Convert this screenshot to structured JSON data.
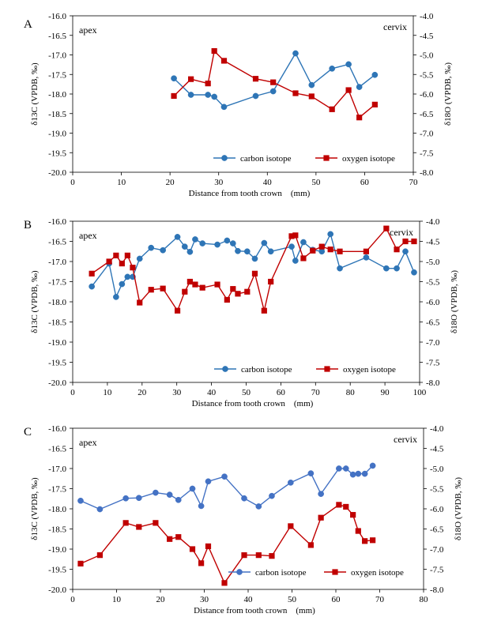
{
  "chart_data": [
    {
      "type": "line",
      "panel": "A",
      "apex_label": "apex",
      "cervix_label": "cervix",
      "xlabel": "Distance from tooth crown　(mm)",
      "ylabel_left": "δ13C (VPDB, ‰)",
      "ylabel_right": "δ18O (VPDB, ‰)",
      "xlim": [
        0,
        70
      ],
      "x_ticks": [
        "0",
        "10",
        "20",
        "30",
        "40",
        "50",
        "60",
        "70"
      ],
      "ylim_left": [
        -20.0,
        -16.0
      ],
      "y_left_ticks": [
        "-16.0",
        "-16.5",
        "-17.0",
        "-17.5",
        "-18.0",
        "-18.5",
        "-19.0",
        "-19.5",
        "-20.0"
      ],
      "ylim_right": [
        -8.0,
        -4.0
      ],
      "y_right_ticks": [
        "-4.0",
        "-4.5",
        "-5.0",
        "-5.5",
        "-6.0",
        "-6.5",
        "-7.0",
        "-7.5",
        "-8.0"
      ],
      "legend_position": "bottom-right",
      "series": [
        {
          "name": "carbon isotope",
          "axis": "left",
          "color": "#2e75b6",
          "marker": "circle",
          "x": [
            20.8,
            24.3,
            27.8,
            29.1,
            31.1,
            37.6,
            41.2,
            45.8,
            49.1,
            53.3,
            56.7,
            58.9,
            62.1
          ],
          "y": [
            -17.6,
            -18.02,
            -18.02,
            -18.07,
            -18.33,
            -18.05,
            -17.93,
            -16.96,
            -17.77,
            -17.35,
            -17.24,
            -17.82,
            -17.51
          ]
        },
        {
          "name": "oxygen isotope",
          "axis": "right",
          "color": "#c00000",
          "marker": "square",
          "x": [
            20.8,
            24.3,
            27.8,
            29.1,
            31.1,
            37.6,
            41.2,
            45.8,
            49.1,
            53.3,
            56.7,
            58.9,
            62.1
          ],
          "y": [
            -6.05,
            -5.62,
            -5.73,
            -4.9,
            -5.15,
            -5.61,
            -5.7,
            -5.98,
            -6.06,
            -6.39,
            -5.9,
            -6.6,
            -6.27
          ]
        }
      ]
    },
    {
      "type": "line",
      "panel": "B",
      "apex_label": "apex",
      "cervix_label": "cervix",
      "xlabel": "Distance from tooth crown　(mm)",
      "ylabel_left": "δ13C (VPDB, ‰)",
      "ylabel_right": "δ18O (VPDB, ‰)",
      "xlim": [
        0,
        100
      ],
      "x_ticks": [
        "0",
        "10",
        "20",
        "30",
        "40",
        "50",
        "60",
        "70",
        "80",
        "90",
        "100"
      ],
      "ylim_left": [
        -20.0,
        -16.0
      ],
      "y_left_ticks": [
        "-16.0",
        "-16.5",
        "-17.0",
        "-17.5",
        "-18.0",
        "-18.5",
        "-19.0",
        "-19.5",
        "-20.0"
      ],
      "ylim_right": [
        -8.0,
        -4.0
      ],
      "y_right_ticks": [
        "-4.0",
        "-4.5",
        "-5.0",
        "-5.5",
        "-6.0",
        "-6.5",
        "-7.0",
        "-7.5",
        "-8.0"
      ],
      "legend_position": "bottom-right",
      "series": [
        {
          "name": "carbon isotope",
          "axis": "left",
          "color": "#2e75b6",
          "marker": "circle",
          "x": [
            5.5,
            10.5,
            12.5,
            14.2,
            15.8,
            17.3,
            19.3,
            22.6,
            26,
            30.2,
            32.3,
            33.8,
            35.3,
            37.4,
            41.7,
            44.5,
            46.2,
            47.6,
            50.3,
            52.5,
            55.2,
            57.1,
            63.1,
            64.2,
            66.5,
            69.2,
            71.8,
            74.3,
            77.0,
            84.6,
            90.4,
            93.4,
            95.9,
            98.4
          ],
          "y": [
            -17.62,
            -17.05,
            -17.88,
            -17.56,
            -17.38,
            -17.38,
            -16.93,
            -16.66,
            -16.72,
            -16.39,
            -16.63,
            -16.76,
            -16.45,
            -16.55,
            -16.58,
            -16.48,
            -16.55,
            -16.74,
            -16.75,
            -16.93,
            -16.54,
            -16.75,
            -16.63,
            -16.98,
            -16.52,
            -16.71,
            -16.75,
            -16.32,
            -17.17,
            -16.9,
            -17.17,
            -17.17,
            -16.75,
            -17.27
          ]
        },
        {
          "name": "oxygen isotope",
          "axis": "right",
          "color": "#c00000",
          "marker": "square",
          "x": [
            5.5,
            10.5,
            12.5,
            14.2,
            15.8,
            17.3,
            19.3,
            22.6,
            26,
            30.2,
            32.3,
            33.8,
            35.3,
            37.4,
            41.7,
            44.5,
            46.2,
            47.6,
            50.3,
            52.5,
            55.2,
            57.1,
            63.1,
            64.2,
            66.5,
            69.2,
            71.8,
            74.3,
            77.0,
            84.6,
            90.4,
            93.4,
            95.9,
            98.4
          ],
          "y": [
            -5.3,
            -5.0,
            -4.85,
            -5.05,
            -4.85,
            -5.15,
            -6.02,
            -5.7,
            -5.67,
            -6.22,
            -5.75,
            -5.5,
            -5.57,
            -5.65,
            -5.57,
            -5.95,
            -5.68,
            -5.8,
            -5.75,
            -5.3,
            -6.22,
            -5.5,
            -4.37,
            -4.35,
            -4.92,
            -4.73,
            -4.63,
            -4.7,
            -4.75,
            -4.75,
            -4.18,
            -4.7,
            -4.5,
            -4.5
          ]
        }
      ]
    },
    {
      "type": "line",
      "panel": "C",
      "apex_label": "apex",
      "cervix_label": "cervix",
      "xlabel": "Distance from tooth crown　(mm)",
      "ylabel_left": "δ13C (VPDB, ‰)",
      "ylabel_right": "δ18O (VPDB, ‰)",
      "xlim": [
        0,
        80
      ],
      "x_ticks": [
        "0",
        "10",
        "20",
        "30",
        "40",
        "50",
        "60",
        "70",
        "80"
      ],
      "ylim_left": [
        -20.0,
        -16.0
      ],
      "y_left_ticks": [
        "-16.0",
        "-16.5",
        "-17.0",
        "-17.5",
        "-18.0",
        "-18.5",
        "-19.0",
        "-19.5",
        "-20.0"
      ],
      "ylim_right": [
        -8.0,
        -4.0
      ],
      "y_right_ticks": [
        "-4.0",
        "-4.5",
        "-5.0",
        "-5.5",
        "-6.0",
        "-6.5",
        "-7.0",
        "-7.5",
        "-8.0"
      ],
      "legend_position": "bottom-right",
      "series": [
        {
          "name": "carbon isotope",
          "axis": "left",
          "color": "#4472c4",
          "marker": "circle",
          "x": [
            1.8,
            6.2,
            12.1,
            15.1,
            18.9,
            22.1,
            24.1,
            27.3,
            29.3,
            30.9,
            34.6,
            39.1,
            42.4,
            45.4,
            49.7,
            54.3,
            56.6,
            60.7,
            62.3,
            63.9,
            65.1,
            66.6,
            68.4
          ],
          "y": [
            -17.8,
            -18.01,
            -17.74,
            -17.73,
            -17.6,
            -17.65,
            -17.78,
            -17.5,
            -17.93,
            -17.32,
            -17.2,
            -17.74,
            -17.94,
            -17.68,
            -17.35,
            -17.12,
            -17.63,
            -17.0,
            -17.0,
            -17.15,
            -17.13,
            -17.13,
            -16.93
          ]
        },
        {
          "name": "oxygen isotope",
          "axis": "right",
          "color": "#c00000",
          "marker": "square",
          "x": [
            1.8,
            6.2,
            12.1,
            15.1,
            18.9,
            22.1,
            24.1,
            27.3,
            29.3,
            30.9,
            34.6,
            39.1,
            42.4,
            45.4,
            49.7,
            54.3,
            56.6,
            60.7,
            62.3,
            63.9,
            65.1,
            66.6,
            68.4
          ],
          "y": [
            -7.36,
            -7.15,
            -6.35,
            -6.45,
            -6.35,
            -6.75,
            -6.7,
            -7.0,
            -7.35,
            -6.93,
            -7.84,
            -7.15,
            -7.15,
            -7.17,
            -6.43,
            -6.9,
            -6.22,
            -5.9,
            -5.95,
            -6.15,
            -6.55,
            -6.8,
            -6.78
          ]
        }
      ]
    }
  ]
}
